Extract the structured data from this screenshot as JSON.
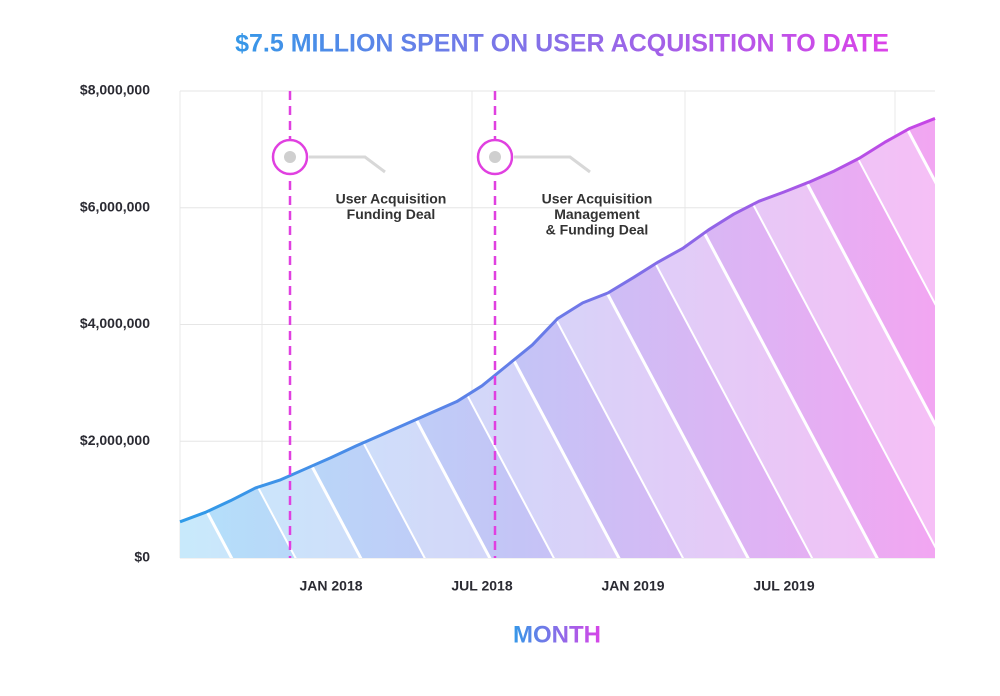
{
  "chart_data": {
    "type": "area",
    "title": "$7.5 MILLION SPENT ON USER ACQUISITION TO DATE",
    "x_label": "MONTH",
    "categories": [
      null,
      null,
      null,
      null,
      null,
      null,
      "JAN 2018",
      null,
      null,
      null,
      null,
      null,
      "JUL 2018",
      null,
      null,
      null,
      null,
      null,
      "JAN 2019",
      null,
      null,
      null,
      null,
      null,
      "JUL 2019",
      null,
      null,
      null,
      null,
      null,
      null
    ],
    "series": [
      {
        "color": "#3a8ee6",
        "values": [
          620000,
          780000,
          980000,
          1200000,
          1340000,
          1530000,
          1720000,
          1920000,
          2110000,
          2300000,
          2490000,
          2680000,
          2950000,
          3300000,
          3650000,
          4100000,
          4370000,
          4540000,
          4800000,
          5070000,
          5310000,
          5620000,
          5890000,
          6110000,
          6270000,
          6440000,
          6630000,
          6850000,
          7120000,
          7360000,
          7530000
        ]
      }
    ],
    "ylim": [
      0,
      8000000
    ],
    "yticks": [
      {
        "value": 0,
        "label": "$0"
      },
      {
        "value": 2000000,
        "label": "$2,000,000"
      },
      {
        "value": 4000000,
        "label": "$4,000,000"
      },
      {
        "value": 6000000,
        "label": "$6,000,000"
      },
      {
        "value": 8000000,
        "label": "$8,000,000"
      }
    ],
    "grid": true,
    "annotations": [
      {
        "lines": [
          "User Acquisition",
          "Funding Deal"
        ]
      },
      {
        "lines": [
          "User Acquisition",
          "Management",
          "& Funding Deal"
        ]
      }
    ]
  }
}
